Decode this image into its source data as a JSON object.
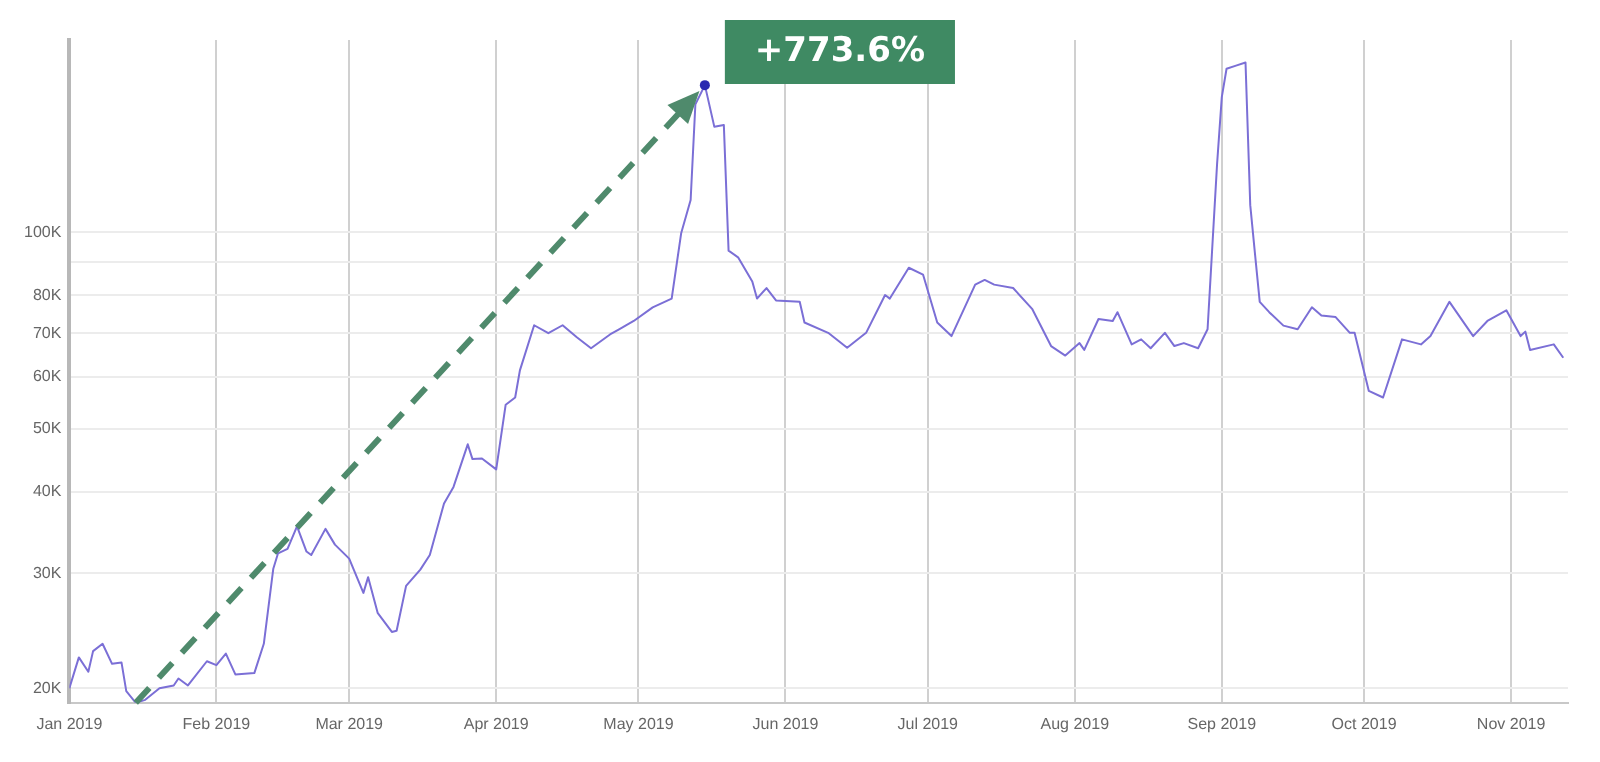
{
  "chart_data": {
    "type": "line",
    "log": "y",
    "grid": true,
    "legend": false,
    "marker": "none",
    "line_style": "solid",
    "color": "#7b6fd6",
    "annotations": [
      {
        "text": "+773.6%",
        "x": "2019-05-15",
        "y": 168000
      }
    ],
    "xlim": [
      "2019-01-01",
      "2019-11-13"
    ],
    "xticks": [
      {
        "value": "2019-01-01",
        "label": "Jan 2019"
      },
      {
        "value": "2019-02-01",
        "label": "Feb 2019"
      },
      {
        "value": "2019-03-01",
        "label": "Mar 2019"
      },
      {
        "value": "2019-04-01",
        "label": "Apr 2019"
      },
      {
        "value": "2019-05-01",
        "label": "May 2019"
      },
      {
        "value": "2019-06-01",
        "label": "Jun 2019"
      },
      {
        "value": "2019-07-01",
        "label": "Jul 2019"
      },
      {
        "value": "2019-08-01",
        "label": "Aug 2019"
      },
      {
        "value": "2019-09-01",
        "label": "Sep 2019"
      },
      {
        "value": "2019-10-01",
        "label": "Oct 2019"
      },
      {
        "value": "2019-11-01",
        "label": "Nov 2019"
      }
    ],
    "ylim": [
      19000,
      197000
    ],
    "yticks": [
      {
        "value": 20000,
        "label": "20K"
      },
      {
        "value": 30000,
        "label": "30K"
      },
      {
        "value": 40000,
        "label": "40K"
      },
      {
        "value": 50000,
        "label": "50K"
      },
      {
        "value": 60000,
        "label": "60K"
      },
      {
        "value": 70000,
        "label": "70K"
      },
      {
        "value": 80000,
        "label": "80K"
      },
      {
        "value": 90000,
        "label": null
      },
      {
        "value": 100000,
        "label": "100K"
      }
    ],
    "x": [
      "2019-01-01",
      "2019-01-03",
      "2019-01-05",
      "2019-01-06",
      "2019-01-08",
      "2019-01-10",
      "2019-01-12",
      "2019-01-13",
      "2019-01-15",
      "2019-01-17",
      "2019-01-20",
      "2019-01-23",
      "2019-01-24",
      "2019-01-26",
      "2019-01-30",
      "2019-02-01",
      "2019-02-03",
      "2019-02-05",
      "2019-02-09",
      "2019-02-11",
      "2019-02-13",
      "2019-02-14",
      "2019-02-16",
      "2019-02-18",
      "2019-02-20",
      "2019-02-21",
      "2019-02-24",
      "2019-02-26",
      "2019-03-01",
      "2019-03-04",
      "2019-03-05",
      "2019-03-07",
      "2019-03-10",
      "2019-03-11",
      "2019-03-13",
      "2019-03-16",
      "2019-03-18",
      "2019-03-21",
      "2019-03-23",
      "2019-03-26",
      "2019-03-27",
      "2019-03-29",
      "2019-04-01",
      "2019-04-03",
      "2019-04-05",
      "2019-04-06",
      "2019-04-09",
      "2019-04-12",
      "2019-04-15",
      "2019-04-18",
      "2019-04-21",
      "2019-04-25",
      "2019-04-27",
      "2019-04-30",
      "2019-05-04",
      "2019-05-08",
      "2019-05-10",
      "2019-05-12",
      "2019-05-13",
      "2019-05-15",
      "2019-05-17",
      "2019-05-19",
      "2019-05-20",
      "2019-05-22",
      "2019-05-25",
      "2019-05-26",
      "2019-05-28",
      "2019-05-30",
      "2019-06-04",
      "2019-06-05",
      "2019-06-10",
      "2019-06-14",
      "2019-06-18",
      "2019-06-22",
      "2019-06-23",
      "2019-06-27",
      "2019-06-30",
      "2019-07-03",
      "2019-07-06",
      "2019-07-11",
      "2019-07-13",
      "2019-07-15",
      "2019-07-19",
      "2019-07-23",
      "2019-07-27",
      "2019-07-30",
      "2019-08-02",
      "2019-08-03",
      "2019-08-06",
      "2019-08-09",
      "2019-08-10",
      "2019-08-13",
      "2019-08-15",
      "2019-08-17",
      "2019-08-20",
      "2019-08-22",
      "2019-08-24",
      "2019-08-27",
      "2019-08-29",
      "2019-08-31",
      "2019-09-01",
      "2019-09-02",
      "2019-09-04",
      "2019-09-06",
      "2019-09-07",
      "2019-09-08",
      "2019-09-09",
      "2019-09-11",
      "2019-09-14",
      "2019-09-17",
      "2019-09-20",
      "2019-09-22",
      "2019-09-25",
      "2019-09-28",
      "2019-09-29",
      "2019-10-02",
      "2019-10-05",
      "2019-10-09",
      "2019-10-13",
      "2019-10-15",
      "2019-10-19",
      "2019-10-24",
      "2019-10-27",
      "2019-10-31",
      "2019-11-03",
      "2019-11-04",
      "2019-11-05",
      "2019-11-10",
      "2019-11-12"
    ],
    "values": [
      20000,
      22300,
      21200,
      22800,
      23400,
      21800,
      21900,
      19800,
      19000,
      19200,
      20000,
      20200,
      20700,
      20200,
      22000,
      21700,
      22600,
      21000,
      21100,
      23400,
      30500,
      32200,
      32700,
      35400,
      32400,
      32000,
      35100,
      33200,
      31600,
      28000,
      29600,
      26100,
      24400,
      24500,
      28700,
      30400,
      32000,
      38400,
      40700,
      47300,
      44900,
      45000,
      43300,
      54400,
      55800,
      61400,
      72000,
      70000,
      72000,
      69000,
      66400,
      69700,
      71000,
      73100,
      76700,
      79100,
      99600,
      112000,
      157000,
      168000,
      145000,
      146000,
      93700,
      91500,
      84000,
      79100,
      82100,
      78600,
      78200,
      72700,
      70100,
      66500,
      70100,
      80100,
      79100,
      88200,
      86100,
      72700,
      69300,
      83100,
      84500,
      83100,
      82100,
      76300,
      66900,
      64700,
      67600,
      66000,
      73600,
      73100,
      75400,
      67300,
      68500,
      66400,
      70100,
      66900,
      67600,
      66400,
      71000,
      127000,
      161000,
      178000,
      180000,
      182000,
      110000,
      92600,
      78200,
      75400,
      71900,
      71000,
      76700,
      74500,
      74100,
      70100,
      70100,
      57100,
      55800,
      68500,
      67300,
      69300,
      78200,
      69300,
      73100,
      75900,
      69300,
      70400,
      66000,
      67300,
      64200
    ]
  }
}
